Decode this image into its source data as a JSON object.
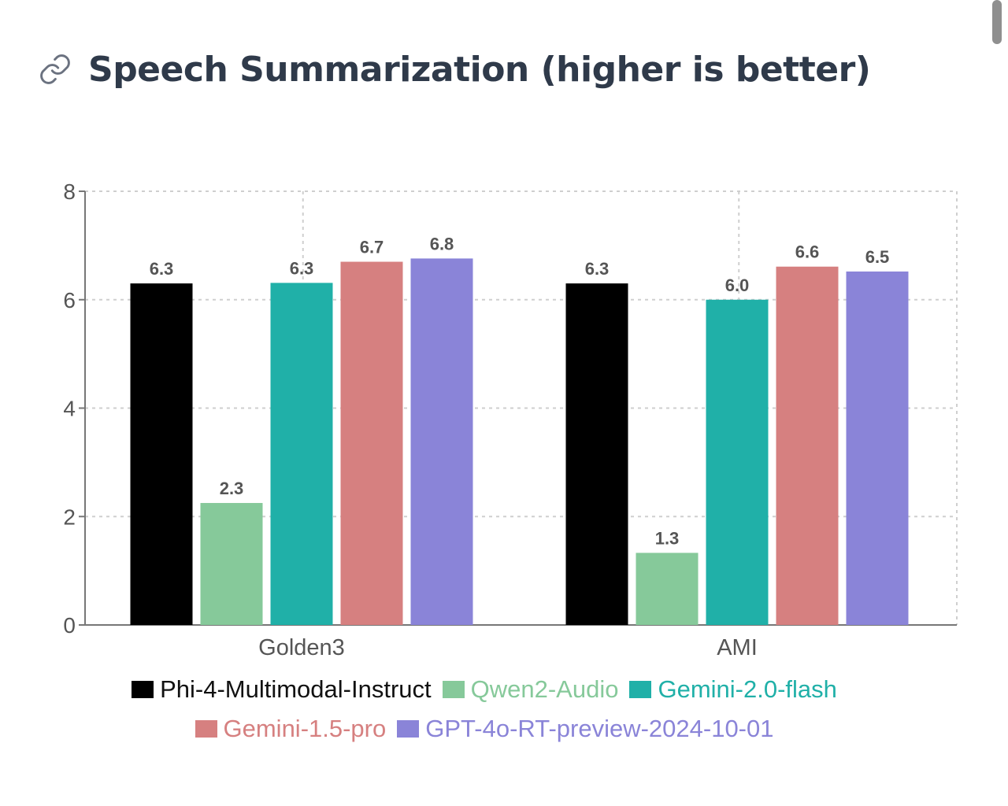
{
  "header": {
    "title": "Speech Summarization (higher is better)",
    "icon": "link-icon"
  },
  "chart_data": {
    "type": "bar",
    "categories": [
      "Golden3",
      "AMI"
    ],
    "series": [
      {
        "name": "Phi-4-Multimodal-Instruct",
        "values": [
          6.3,
          6.3
        ],
        "labels": [
          "6.3",
          "6.3"
        ],
        "color": "#000000"
      },
      {
        "name": "Qwen2-Audio",
        "values": [
          2.25,
          1.33
        ],
        "labels": [
          "2.3",
          "1.3"
        ],
        "color": "#86c99a"
      },
      {
        "name": "Gemini-2.0-flash",
        "values": [
          6.31,
          6.0
        ],
        "labels": [
          "6.3",
          "6.0"
        ],
        "color": "#20b0a8"
      },
      {
        "name": "Gemini-1.5-pro",
        "values": [
          6.7,
          6.61
        ],
        "labels": [
          "6.7",
          "6.6"
        ],
        "color": "#d68080"
      },
      {
        "name": "GPT-4o-RT-preview-2024-10-01",
        "values": [
          6.76,
          6.52
        ],
        "labels": [
          "6.8",
          "6.5"
        ],
        "color": "#8a84d8"
      }
    ],
    "ylim": [
      0,
      8
    ],
    "yticks": [
      "0",
      "2",
      "4",
      "6",
      "8"
    ],
    "grid": true,
    "legend_position": "bottom"
  }
}
